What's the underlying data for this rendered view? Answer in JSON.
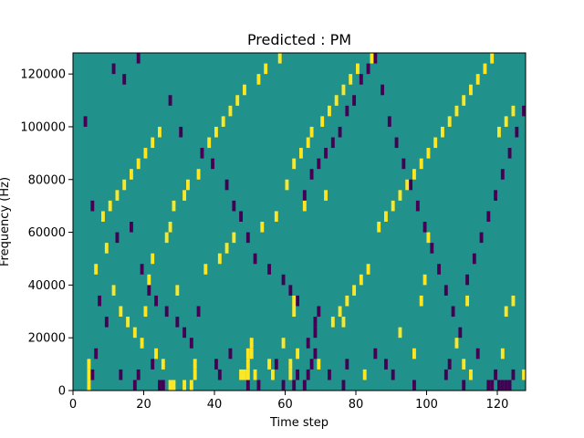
{
  "chart_data": {
    "type": "heatmap",
    "title": "Predicted : PM",
    "xlabel": "Time step",
    "ylabel": "Frequency (Hz)",
    "xlim": [
      0,
      128
    ],
    "ylim": [
      0,
      128000
    ],
    "xticks": [
      0,
      20,
      40,
      60,
      80,
      100,
      120
    ],
    "yticks": [
      0,
      20000,
      40000,
      60000,
      80000,
      100000,
      120000
    ],
    "grid": false,
    "colormap": "viridis",
    "values_legend": {
      "background": 0,
      "low": -1,
      "high": 1
    },
    "colors": {
      "background": "#21918c",
      "low": "#440154",
      "high": "#fde725"
    },
    "cell_width_steps": 1,
    "cell_height_hz": 4000,
    "high_cells": [
      [
        4,
        0
      ],
      [
        4,
        4000
      ],
      [
        4,
        8000
      ],
      [
        27,
        0
      ],
      [
        28,
        0
      ],
      [
        31,
        0
      ],
      [
        33,
        0
      ],
      [
        34,
        4000
      ],
      [
        34,
        8000
      ],
      [
        47,
        4000
      ],
      [
        48,
        4000
      ],
      [
        49,
        4000
      ],
      [
        49,
        8000
      ],
      [
        49,
        12000
      ],
      [
        50,
        12000
      ],
      [
        50,
        16000
      ],
      [
        51,
        4000
      ],
      [
        55,
        8000
      ],
      [
        56,
        4000
      ],
      [
        59,
        16000
      ],
      [
        61,
        4000
      ],
      [
        61,
        8000
      ],
      [
        62,
        28000
      ],
      [
        62,
        32000
      ],
      [
        63,
        12000
      ],
      [
        69,
        8000
      ],
      [
        76,
        24000
      ],
      [
        82,
        4000
      ],
      [
        92,
        20000
      ],
      [
        96,
        12000
      ],
      [
        98,
        32000
      ],
      [
        99,
        40000
      ],
      [
        100,
        56000
      ],
      [
        108,
        16000
      ],
      [
        110,
        8000
      ],
      [
        111,
        32000
      ],
      [
        112,
        4000
      ],
      [
        121,
        12000
      ],
      [
        122,
        28000
      ],
      [
        124,
        32000
      ],
      [
        127,
        4000
      ],
      [
        20,
        28000
      ],
      [
        21,
        40000
      ],
      [
        22,
        48000
      ],
      [
        26,
        56000
      ],
      [
        27,
        60000
      ],
      [
        28,
        68000
      ],
      [
        31,
        72000
      ],
      [
        32,
        76000
      ],
      [
        35,
        80000
      ],
      [
        38,
        92000
      ],
      [
        40,
        96000
      ],
      [
        42,
        100000
      ],
      [
        44,
        104000
      ],
      [
        46,
        108000
      ],
      [
        48,
        112000
      ],
      [
        52,
        116000
      ],
      [
        54,
        120000
      ],
      [
        58,
        124000
      ],
      [
        60,
        76000
      ],
      [
        62,
        84000
      ],
      [
        64,
        88000
      ],
      [
        66,
        92000
      ],
      [
        67,
        96000
      ],
      [
        70,
        100000
      ],
      [
        72,
        104000
      ],
      [
        74,
        108000
      ],
      [
        76,
        112000
      ],
      [
        78,
        116000
      ],
      [
        80,
        120000
      ],
      [
        84,
        124000
      ],
      [
        86,
        60000
      ],
      [
        88,
        64000
      ],
      [
        90,
        68000
      ],
      [
        92,
        72000
      ],
      [
        94,
        76000
      ],
      [
        96,
        80000
      ],
      [
        98,
        84000
      ],
      [
        100,
        88000
      ],
      [
        102,
        92000
      ],
      [
        104,
        96000
      ],
      [
        106,
        100000
      ],
      [
        108,
        104000
      ],
      [
        110,
        108000
      ],
      [
        112,
        112000
      ],
      [
        114,
        116000
      ],
      [
        116,
        120000
      ],
      [
        118,
        124000
      ],
      [
        120,
        96000
      ],
      [
        122,
        100000
      ],
      [
        124,
        104000
      ],
      [
        8,
        64000
      ],
      [
        10,
        68000
      ],
      [
        12,
        72000
      ],
      [
        14,
        76000
      ],
      [
        16,
        80000
      ],
      [
        18,
        84000
      ],
      [
        20,
        88000
      ],
      [
        22,
        92000
      ],
      [
        24,
        96000
      ],
      [
        6,
        44000
      ],
      [
        9,
        52000
      ],
      [
        11,
        36000
      ],
      [
        13,
        28000
      ],
      [
        15,
        24000
      ],
      [
        17,
        20000
      ],
      [
        19,
        16000
      ],
      [
        23,
        12000
      ],
      [
        25,
        8000
      ],
      [
        29,
        36000
      ],
      [
        37,
        44000
      ],
      [
        41,
        48000
      ],
      [
        43,
        52000
      ],
      [
        45,
        56000
      ],
      [
        53,
        60000
      ],
      [
        57,
        64000
      ],
      [
        65,
        68000
      ],
      [
        71,
        72000
      ],
      [
        73,
        24000
      ],
      [
        75,
        28000
      ],
      [
        77,
        32000
      ],
      [
        79,
        36000
      ],
      [
        81,
        40000
      ],
      [
        83,
        44000
      ]
    ],
    "low_cells": [
      [
        5,
        4000
      ],
      [
        6,
        12000
      ],
      [
        13,
        4000
      ],
      [
        17,
        0
      ],
      [
        18,
        4000
      ],
      [
        22,
        8000
      ],
      [
        24,
        0
      ],
      [
        25,
        0
      ],
      [
        40,
        8000
      ],
      [
        41,
        4000
      ],
      [
        44,
        12000
      ],
      [
        49,
        0
      ],
      [
        52,
        0
      ],
      [
        57,
        8000
      ],
      [
        59,
        0
      ],
      [
        62,
        0
      ],
      [
        63,
        4000
      ],
      [
        65,
        0
      ],
      [
        66,
        4000
      ],
      [
        66,
        16000
      ],
      [
        67,
        8000
      ],
      [
        68,
        12000
      ],
      [
        68,
        20000
      ],
      [
        68,
        24000
      ],
      [
        69,
        28000
      ],
      [
        72,
        4000
      ],
      [
        76,
        0
      ],
      [
        77,
        8000
      ],
      [
        85,
        12000
      ],
      [
        88,
        8000
      ],
      [
        90,
        4000
      ],
      [
        96,
        0
      ],
      [
        105,
        4000
      ],
      [
        106,
        8000
      ],
      [
        110,
        0
      ],
      [
        114,
        12000
      ],
      [
        117,
        0
      ],
      [
        118,
        0
      ],
      [
        119,
        4000
      ],
      [
        120,
        0
      ],
      [
        121,
        0
      ],
      [
        122,
        0
      ],
      [
        123,
        0
      ],
      [
        124,
        4000
      ],
      [
        11,
        120000
      ],
      [
        14,
        116000
      ],
      [
        18,
        124000
      ],
      [
        27,
        108000
      ],
      [
        30,
        96000
      ],
      [
        36,
        88000
      ],
      [
        39,
        84000
      ],
      [
        43,
        76000
      ],
      [
        45,
        68000
      ],
      [
        47,
        64000
      ],
      [
        49,
        56000
      ],
      [
        51,
        48000
      ],
      [
        55,
        44000
      ],
      [
        59,
        40000
      ],
      [
        61,
        36000
      ],
      [
        63,
        32000
      ],
      [
        65,
        72000
      ],
      [
        67,
        80000
      ],
      [
        69,
        84000
      ],
      [
        71,
        88000
      ],
      [
        73,
        92000
      ],
      [
        75,
        96000
      ],
      [
        77,
        104000
      ],
      [
        79,
        108000
      ],
      [
        81,
        116000
      ],
      [
        83,
        120000
      ],
      [
        85,
        124000
      ],
      [
        87,
        112000
      ],
      [
        89,
        100000
      ],
      [
        91,
        92000
      ],
      [
        93,
        84000
      ],
      [
        95,
        76000
      ],
      [
        97,
        68000
      ],
      [
        99,
        60000
      ],
      [
        101,
        52000
      ],
      [
        103,
        44000
      ],
      [
        105,
        36000
      ],
      [
        107,
        28000
      ],
      [
        109,
        20000
      ],
      [
        111,
        40000
      ],
      [
        113,
        48000
      ],
      [
        115,
        56000
      ],
      [
        117,
        64000
      ],
      [
        119,
        72000
      ],
      [
        121,
        80000
      ],
      [
        123,
        88000
      ],
      [
        125,
        96000
      ],
      [
        127,
        104000
      ],
      [
        3,
        100000
      ],
      [
        5,
        68000
      ],
      [
        7,
        32000
      ],
      [
        9,
        24000
      ],
      [
        12,
        56000
      ],
      [
        16,
        60000
      ],
      [
        19,
        44000
      ],
      [
        21,
        36000
      ],
      [
        23,
        32000
      ],
      [
        26,
        28000
      ],
      [
        29,
        24000
      ],
      [
        31,
        20000
      ],
      [
        33,
        16000
      ],
      [
        35,
        28000
      ]
    ]
  }
}
